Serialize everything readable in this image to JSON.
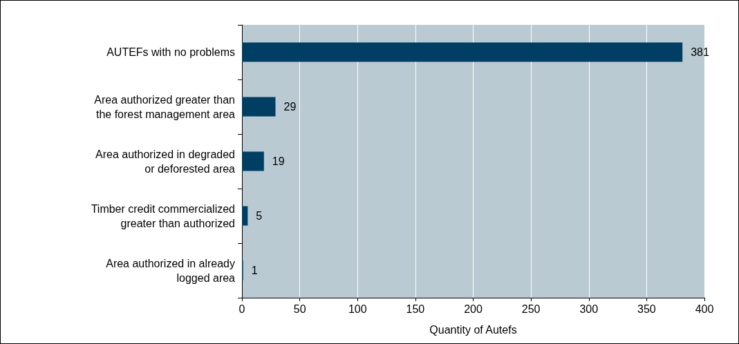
{
  "chart_data": {
    "type": "bar",
    "orientation": "horizontal",
    "xlabel": "Quantity of Autefs",
    "categories": [
      "AUTEFs with no problems",
      "Area authorized greater than\nthe forest management area",
      "Area authorized in degraded\nor deforested area",
      "Timber credit commercialized\ngreater than authorized",
      "Area authorized in already\nlogged area"
    ],
    "values": [
      381,
      29,
      19,
      5,
      1
    ],
    "color": "#003f63",
    "xlim": [
      0,
      400
    ],
    "xticks": [
      0,
      50,
      100,
      150,
      200,
      250,
      300,
      350,
      400
    ],
    "grid": "x",
    "data_labels": true
  }
}
